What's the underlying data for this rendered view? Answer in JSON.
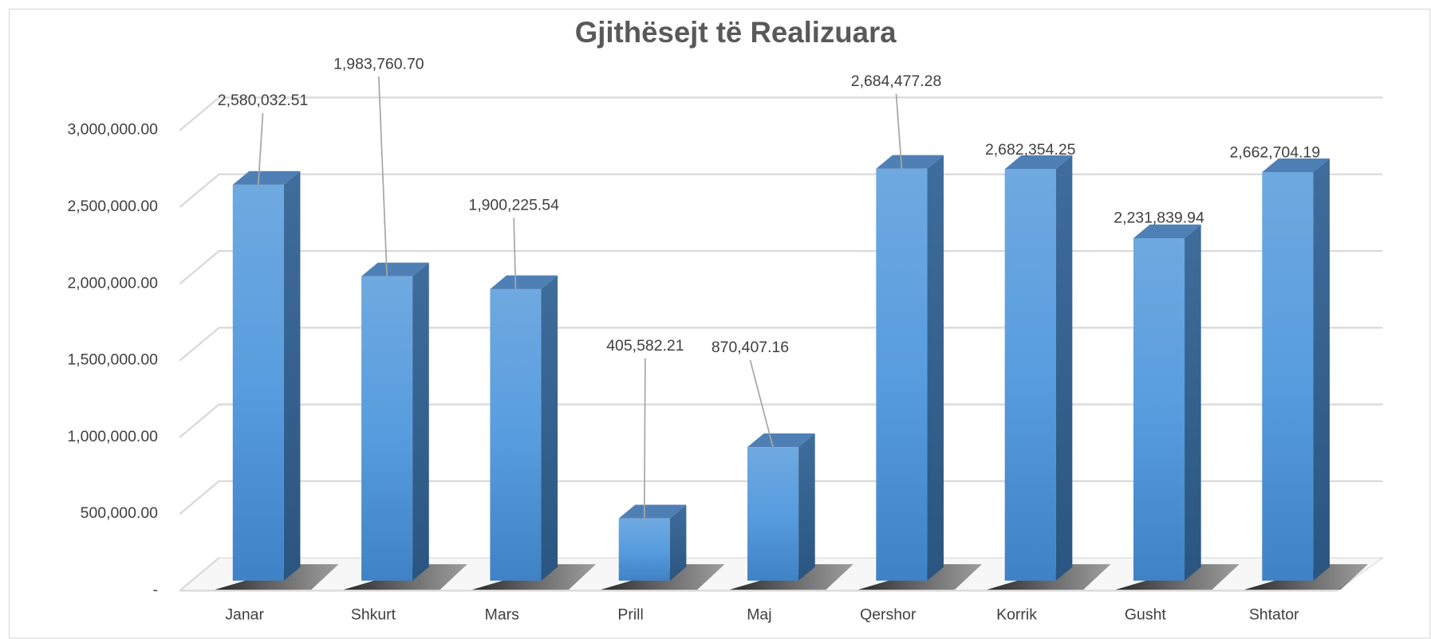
{
  "chart_data": {
    "type": "bar3d",
    "title": "Gjithësejt të Realizuara",
    "categories": [
      "Janar",
      "Shkurt",
      "Mars",
      "Prill",
      "Maj",
      "Qershor",
      "Korrik",
      "Gusht",
      "Shtator"
    ],
    "values": [
      2580032.51,
      1983760.7,
      1900225.54,
      405582.21,
      870407.16,
      2684477.28,
      2682354.25,
      2231839.94,
      2662704.19
    ],
    "value_labels": [
      "2,580,032.51",
      "1,983,760.70",
      "1,900,225.54",
      "405,582.21",
      "870,407.16",
      "2,684,477.28",
      "2,682,354.25",
      "2,231,839.94",
      "2,662,704.19"
    ],
    "color": "#5b9bd5",
    "ylim": [
      0,
      3000000
    ],
    "yticks": [
      {
        "value": 0,
        "label": "-"
      },
      {
        "value": 500000,
        "label": "500,000.00"
      },
      {
        "value": 1000000,
        "label": "1,000,000.00"
      },
      {
        "value": 1500000,
        "label": "1,500,000.00"
      },
      {
        "value": 2000000,
        "label": "2,000,000.00"
      },
      {
        "value": 2500000,
        "label": "2,500,000.00"
      },
      {
        "value": 3000000,
        "label": "3,000,000.00"
      }
    ],
    "grid": true
  }
}
